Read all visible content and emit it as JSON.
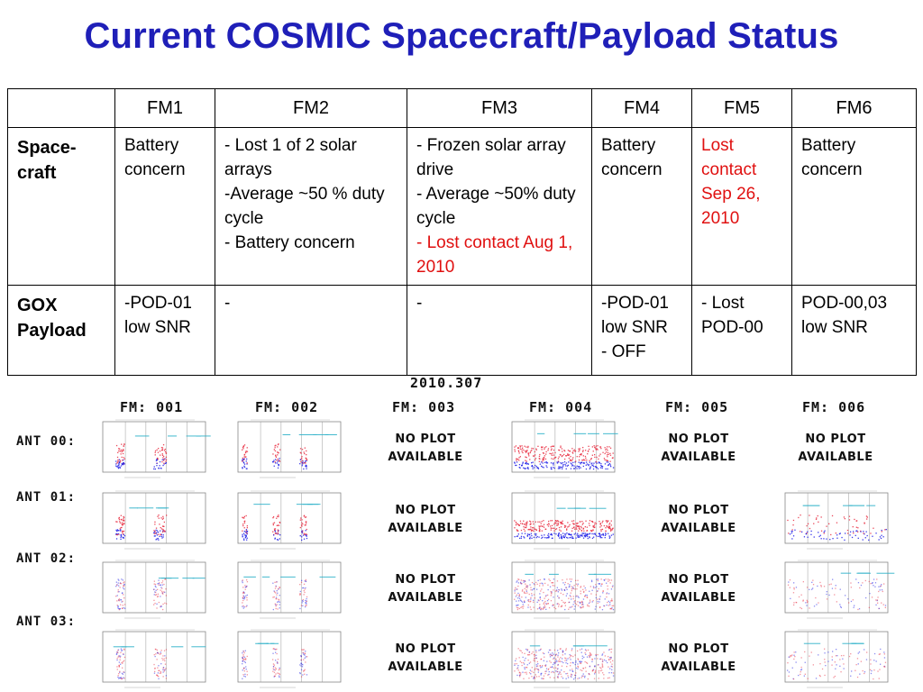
{
  "title": "Current COSMIC Spacecraft/Payload Status",
  "table": {
    "corner": "",
    "columns": [
      "FM1",
      "FM2",
      "FM3",
      "FM4",
      "FM5",
      "FM6"
    ],
    "rows": [
      {
        "label": "Space-\ncraft",
        "cells": [
          [
            {
              "text": "Battery concern",
              "color": "#000000"
            }
          ],
          [
            {
              "text": "- Lost 1 of 2 solar arrays",
              "color": "#000000"
            },
            {
              "text": "-Average ~50 % duty cycle",
              "color": "#000000"
            },
            {
              "text": "- Battery concern",
              "color": "#000000"
            }
          ],
          [
            {
              "text": "- Frozen solar array drive",
              "color": "#000000"
            },
            {
              "text": "- Average ~50% duty cycle",
              "color": "#000000"
            },
            {
              "text": "- Lost contact Aug 1, 2010",
              "color": "#e01010"
            }
          ],
          [
            {
              "text": "Battery concern",
              "color": "#000000"
            }
          ],
          [
            {
              "text": "Lost contact Sep 26, 2010",
              "color": "#e01010"
            }
          ],
          [
            {
              "text": "Battery concern",
              "color": "#000000"
            }
          ]
        ]
      },
      {
        "label": "GOX Payload",
        "cells": [
          [
            {
              "text": "-POD-01 low SNR",
              "color": "#000000"
            }
          ],
          [
            {
              "text": "-",
              "color": "#000000"
            }
          ],
          [
            {
              "text": "-",
              "color": "#000000"
            }
          ],
          [
            {
              "text": "-POD-01 low SNR",
              "color": "#000000"
            },
            {
              "text": "- OFF",
              "color": "#000000"
            }
          ],
          [
            {
              "text": "- Lost POD-00",
              "color": "#000000"
            }
          ],
          [
            {
              "text": "POD-00,03 low SNR",
              "color": "#000000"
            }
          ]
        ]
      }
    ]
  },
  "plots": {
    "date": "2010.307",
    "fm_labels": [
      "FM: 001",
      "FM: 002",
      "FM: 003",
      "FM: 004",
      "FM: 005",
      "FM: 006"
    ],
    "ant_labels": [
      "ANT 00:",
      "ANT 01:",
      "ANT 02:",
      "ANT 03:"
    ],
    "no_plot_line1": "NO PLOT",
    "no_plot_line2": "AVAILABLE",
    "availability": [
      [
        true,
        true,
        false,
        true,
        false,
        false
      ],
      [
        true,
        true,
        false,
        true,
        false,
        true
      ],
      [
        true,
        true,
        false,
        true,
        false,
        true
      ],
      [
        true,
        true,
        false,
        true,
        false,
        true
      ]
    ],
    "colors": {
      "high": "#e8283c",
      "low": "#1a1ae6",
      "accent": "#2ab0c8"
    }
  }
}
